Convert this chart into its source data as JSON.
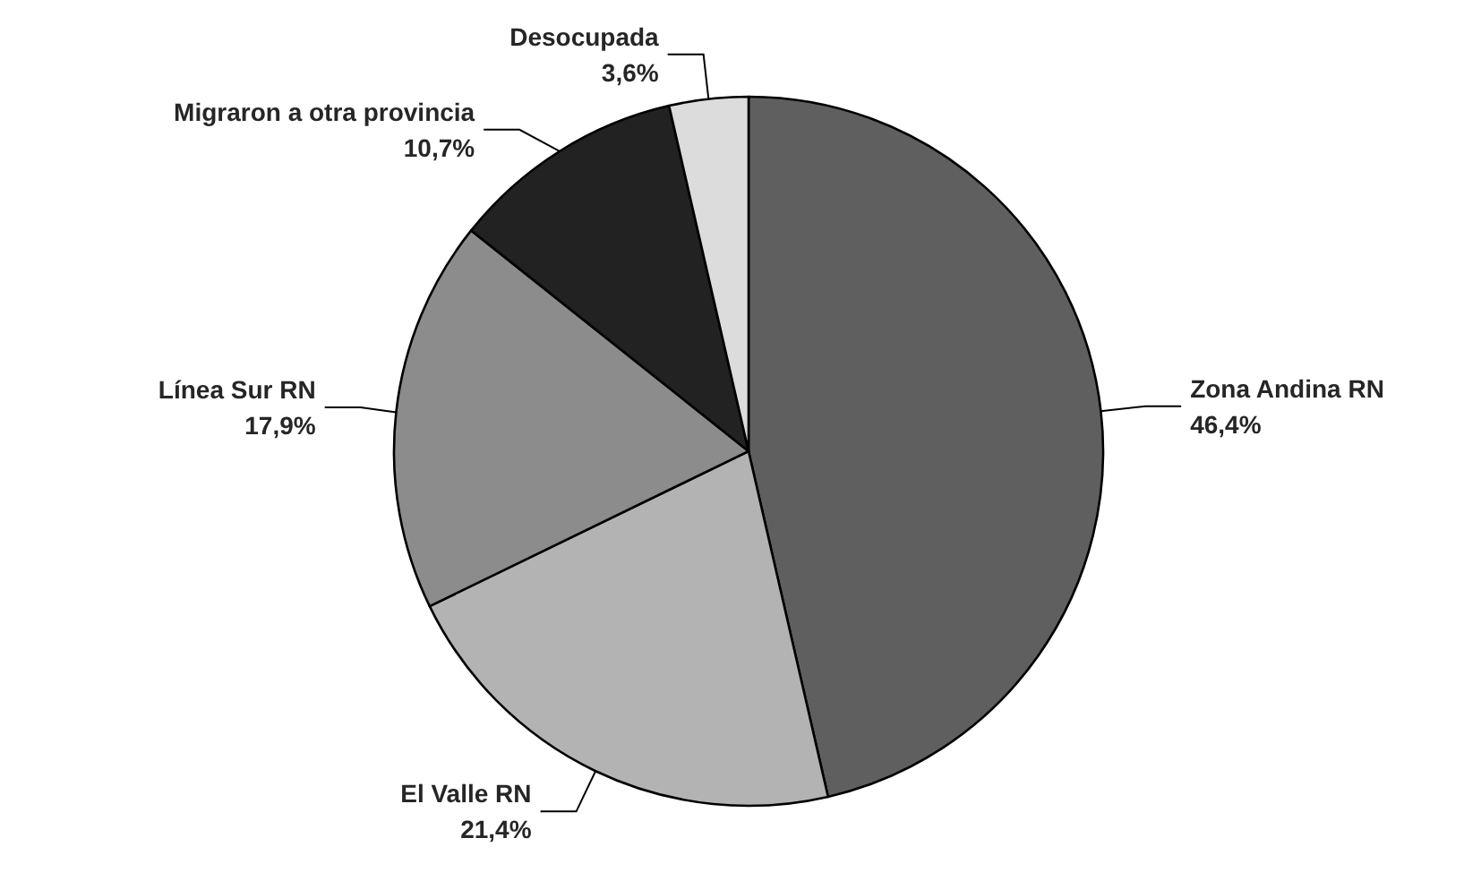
{
  "chart_data": {
    "type": "pie",
    "categories": [
      "Zona Andina RN",
      "El Valle RN",
      "Línea Sur RN",
      "Migraron a otra provincia",
      "Desocupada"
    ],
    "values": [
      46.4,
      21.4,
      17.9,
      10.7,
      3.6
    ],
    "value_labels": [
      "46,4%",
      "21,4%",
      "17,9%",
      "10,7%",
      "3,6%"
    ],
    "colors": [
      "#5f5f5f",
      "#b3b3b3",
      "#8c8c8c",
      "#222222",
      "#dcdcdc"
    ],
    "legend": false
  }
}
